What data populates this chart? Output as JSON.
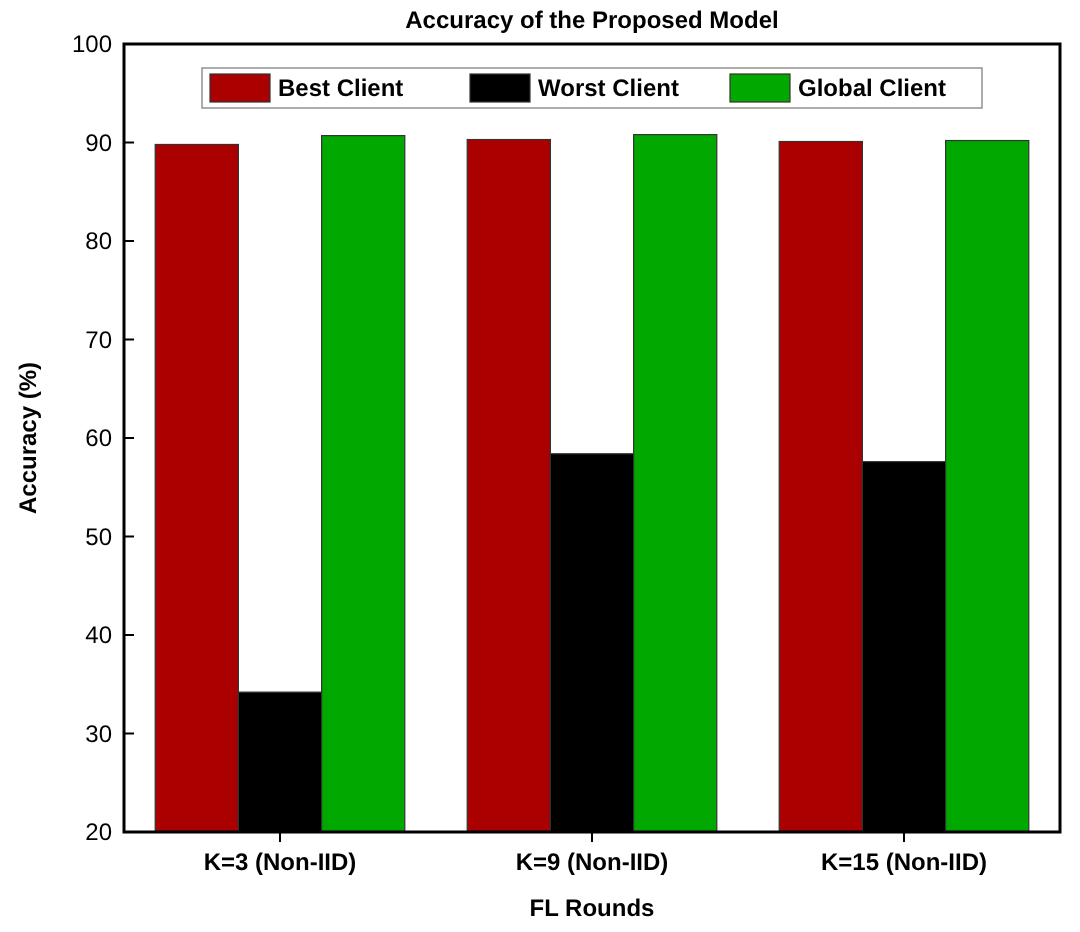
{
  "chart_data": {
    "type": "bar",
    "title": "Accuracy of the Proposed Model",
    "xlabel": "FL Rounds",
    "ylabel": "Accuracy (%)",
    "categories": [
      "K=3 (Non-IID)",
      "K=9 (Non-IID)",
      "K=15 (Non-IID)"
    ],
    "series": [
      {
        "name": "Best Client",
        "color": "#aa0000",
        "values": [
          89.8,
          90.3,
          90.1
        ]
      },
      {
        "name": "Worst Client",
        "color": "#000000",
        "values": [
          34.2,
          58.4,
          57.6
        ]
      },
      {
        "name": "Global Client",
        "color": "#00a800",
        "values": [
          90.7,
          90.8,
          90.2
        ]
      }
    ],
    "ylim": [
      20,
      100
    ],
    "yticks": [
      20,
      30,
      40,
      50,
      60,
      70,
      80,
      90,
      100
    ],
    "grid": false,
    "legend": "top"
  }
}
